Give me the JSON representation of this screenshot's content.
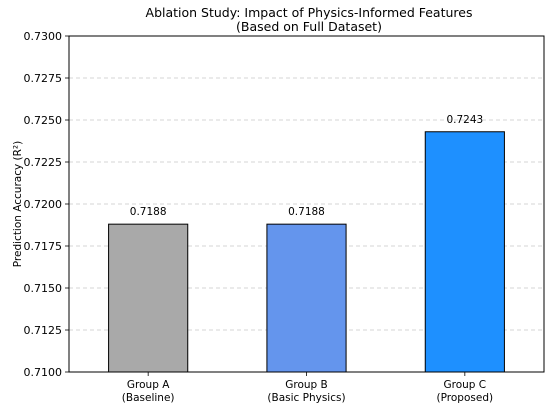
{
  "chart_data": {
    "type": "bar",
    "title": "Ablation Study: Impact of Physics-Informed Features",
    "subtitle": "(Based on Full Dataset)",
    "xlabel": "",
    "ylabel": "Prediction Accuracy (R²)",
    "categories": [
      [
        "Group A",
        "(Baseline)"
      ],
      [
        "Group B",
        "(Basic Physics)"
      ],
      [
        "Group C",
        "(Proposed)"
      ]
    ],
    "values": [
      0.7188,
      0.7188,
      0.7243
    ],
    "value_labels": [
      "0.7188",
      "0.7188",
      "0.7243"
    ],
    "colors": [
      "#a9a9a9",
      "#6495ed",
      "#1e90ff"
    ],
    "ylim": [
      0.71,
      0.73
    ],
    "yticks": [
      0.71,
      0.7125,
      0.715,
      0.7175,
      0.72,
      0.7225,
      0.725,
      0.7275,
      0.73
    ],
    "ytick_labels": [
      "0.7100",
      "0.7125",
      "0.7150",
      "0.7175",
      "0.7200",
      "0.7225",
      "0.7250",
      "0.7275",
      "0.7300"
    ],
    "grid": "y-dashed",
    "legend": "none"
  }
}
